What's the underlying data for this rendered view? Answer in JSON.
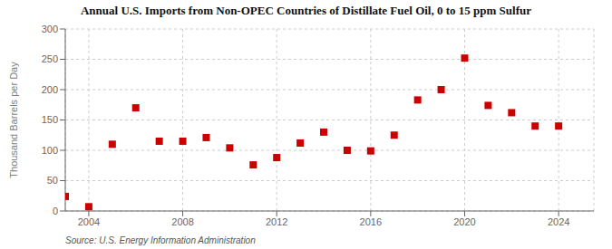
{
  "chart_data": {
    "type": "scatter",
    "title": "Annual U.S. Imports from Non-OPEC Countries of Distillate Fuel Oil, 0 to 15 ppm Sulfur",
    "ylabel": "Thousand Barrels per Day",
    "source": "Source: U.S. Energy Information Administration",
    "x": [
      2003,
      2004,
      2005,
      2006,
      2007,
      2008,
      2009,
      2010,
      2011,
      2012,
      2013,
      2014,
      2015,
      2016,
      2017,
      2018,
      2019,
      2020,
      2021,
      2022,
      2023,
      2024
    ],
    "values": [
      24,
      7,
      110,
      170,
      115,
      115,
      121,
      104,
      76,
      88,
      112,
      130,
      100,
      99,
      125,
      183,
      200,
      252,
      174,
      162,
      140,
      140
    ],
    "color": "#cc0000",
    "marker": "square",
    "xlim": [
      2003,
      2025.5
    ],
    "xticks": [
      2004,
      2008,
      2012,
      2016,
      2020,
      2024
    ],
    "ylim": [
      0,
      300
    ],
    "yticks": [
      0,
      50,
      100,
      150,
      200,
      250,
      300
    ],
    "grid": true
  }
}
